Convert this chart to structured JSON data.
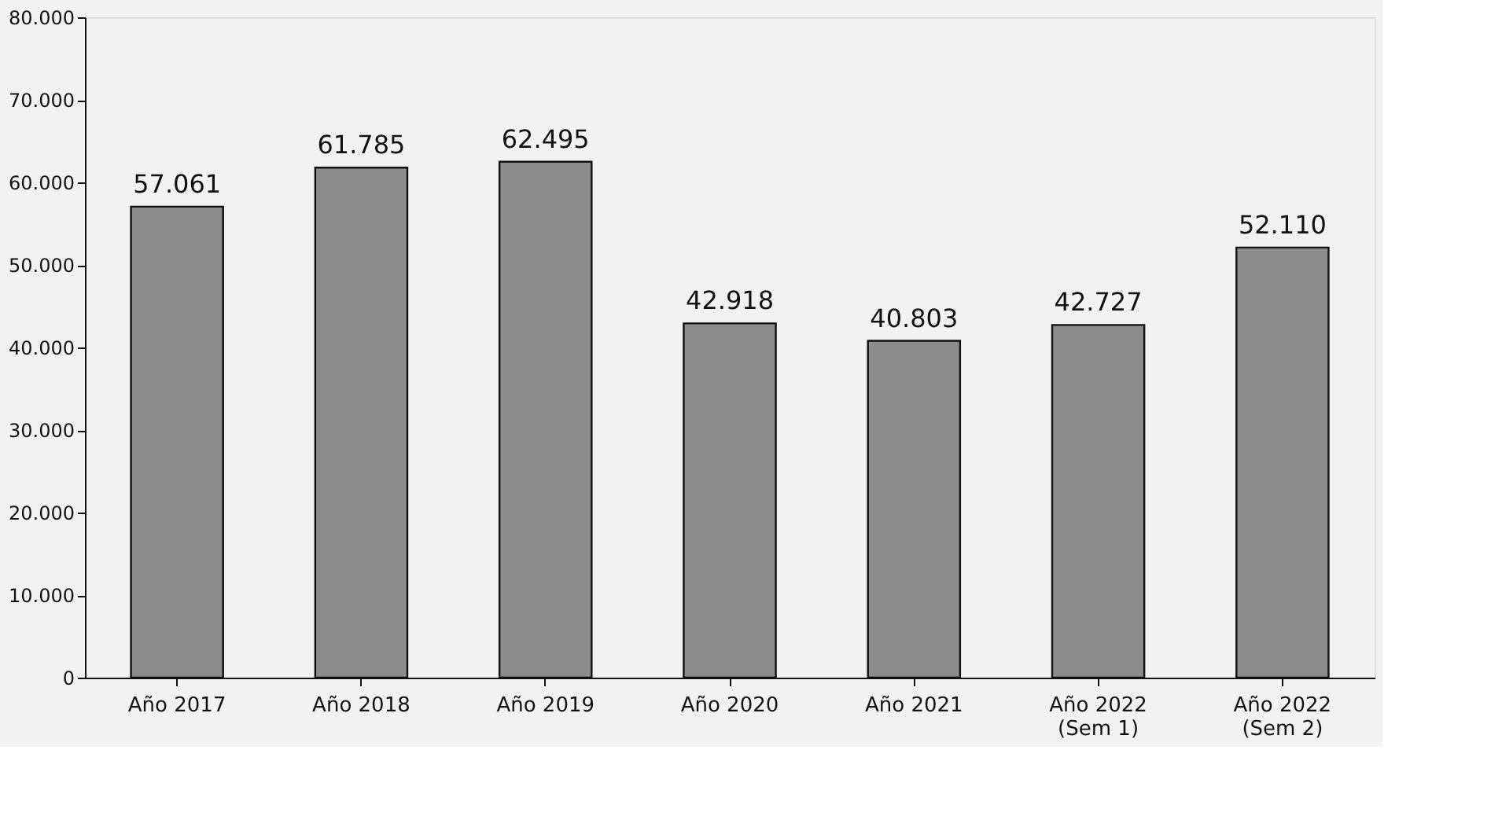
{
  "chart_data": {
    "type": "bar",
    "categories": [
      "Año 2017",
      "Año 2018",
      "Año 2019",
      "Año 2020",
      "Año 2021",
      "Año 2022\n(Sem 1)",
      "Año 2022\n(Sem 2)"
    ],
    "values": [
      57061,
      61785,
      62495,
      42918,
      40803,
      42727,
      52110
    ],
    "value_labels": [
      "57.061",
      "61.785",
      "62.495",
      "42.918",
      "40.803",
      "42.727",
      "52.110"
    ],
    "color": "#8c8c8c",
    "ylim": [
      0,
      80000
    ],
    "yticks": [
      {
        "value": 0,
        "label": "0"
      },
      {
        "value": 10000,
        "label": "10.000"
      },
      {
        "value": 20000,
        "label": "20.000"
      },
      {
        "value": 30000,
        "label": "30.000"
      },
      {
        "value": 40000,
        "label": "40.000"
      },
      {
        "value": 50000,
        "label": "50.000"
      },
      {
        "value": 60000,
        "label": "60.000"
      },
      {
        "value": 70000,
        "label": "70.000"
      },
      {
        "value": 80000,
        "label": "80.000"
      }
    ],
    "grid": false
  }
}
